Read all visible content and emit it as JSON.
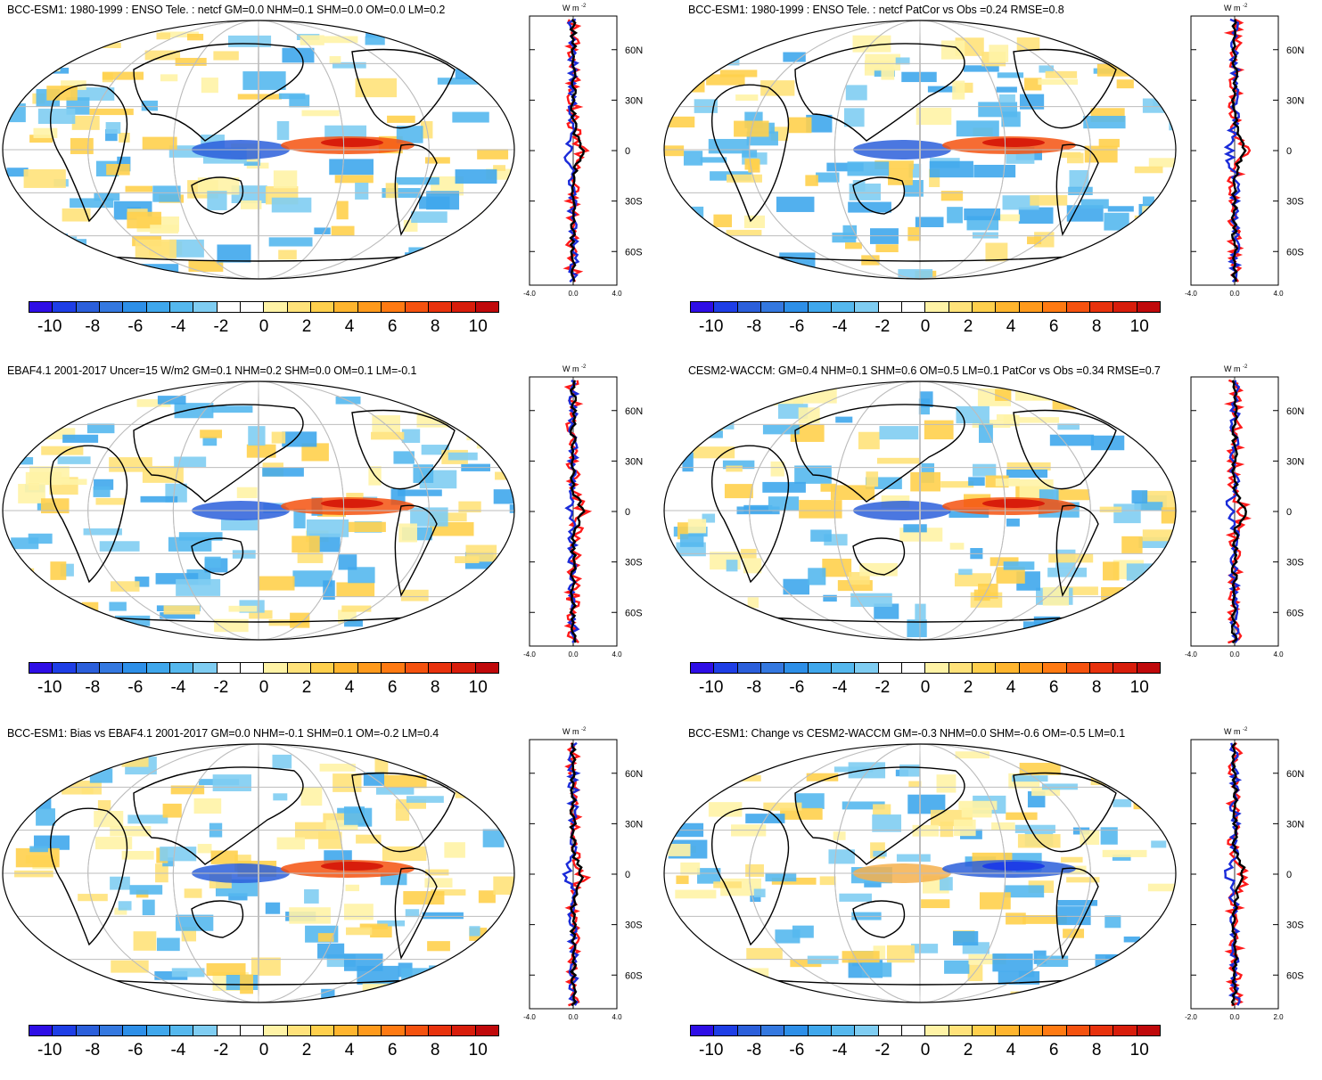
{
  "panels": [
    {
      "title": "BCC-ESM1: 1980-1999 : ENSO Tele. : netcf GM=0.0 NHM=0.1 SHM=0.0 OM=0.0 LM=0.2",
      "zonal_xticks": [
        "-4.0",
        "0.0",
        "4.0"
      ]
    },
    {
      "title": "BCC-ESM1: 1980-1999 : ENSO Tele. : netcf PatCor vs Obs =0.24 RMSE=0.8",
      "zonal_xticks": [
        "-4.0",
        "0.0",
        "4.0"
      ]
    },
    {
      "title": "EBAF4.1 2001-2017 Uncer=15 W/m2 GM=0.1 NHM=0.2 SHM=0.0 OM=0.1 LM=-0.1",
      "zonal_xticks": [
        "-4.0",
        "0.0",
        "4.0"
      ]
    },
    {
      "title": "CESM2-WACCM: GM=0.4 NHM=0.1 SHM=0.6 OM=0.5 LM=0.1 PatCor vs Obs =0.34 RMSE=0.7",
      "zonal_xticks": [
        "-4.0",
        "0.0",
        "4.0"
      ]
    },
    {
      "title": "BCC-ESM1: Bias vs EBAF4.1 2001-2017 GM=0.0 NHM=-0.1 SHM=0.1 OM=-0.2 LM=0.4",
      "zonal_xticks": [
        "-4.0",
        "0.0",
        "4.0"
      ]
    },
    {
      "title": "BCC-ESM1: Change vs CESM2-WACCM GM=-0.3 NHM=0.0 SHM=-0.6 OM=-0.5 LM=0.1",
      "zonal_xticks": [
        "-2.0",
        "0.0",
        "2.0"
      ]
    }
  ],
  "zonal": {
    "units_label": "W m",
    "units_superscript": "-2",
    "lat_ticks": [
      "60N",
      "30N",
      "0",
      "30S",
      "60S"
    ]
  },
  "colorbar": {
    "labels": [
      "-10",
      "-8",
      "-6",
      "-4",
      "-2",
      "0",
      "2",
      "4",
      "6",
      "8",
      "10"
    ],
    "colors": [
      "#2e0ee6",
      "#1e3ee6",
      "#2b5fdb",
      "#3478e0",
      "#2d8fe8",
      "#3fa7ec",
      "#55b8ee",
      "#7fcdf2",
      "#ffffff",
      "#ffffff",
      "#fff3a6",
      "#ffe27a",
      "#ffd04d",
      "#ffb52e",
      "#ff9a1c",
      "#ff7a12",
      "#f5520f",
      "#e8320d",
      "#d81d0b",
      "#c0090b"
    ]
  },
  "line_colors": {
    "obs": "#ff1a1a",
    "model": "#1a2bd9",
    "mean": "#000000"
  }
}
